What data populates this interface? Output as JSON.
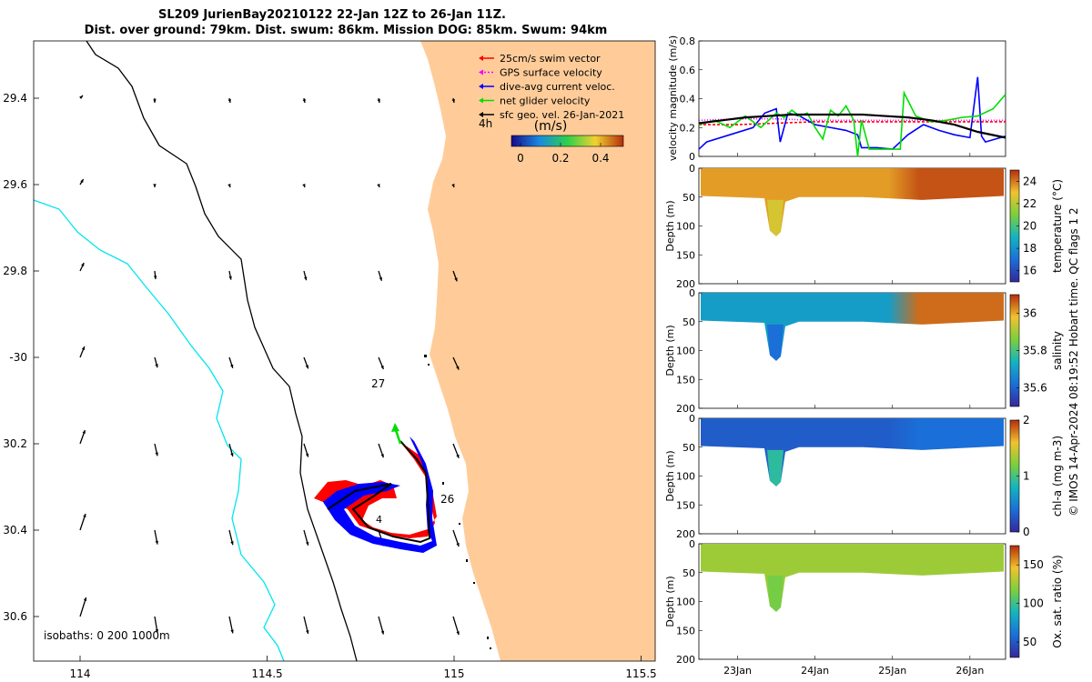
{
  "title": {
    "line1": "SL209 JurienBay20210122 22-Jan 12Z to 26-Jan 11Z.",
    "line2": "Dist. over ground: 79km. Dist. swum: 86km. Mission DOG: 85km. Swum: 94km"
  },
  "credit": "© IMOS 14-Apr-2024 08:19:52 Hobart time. QC flags 1  2",
  "map": {
    "legend": [
      {
        "label": "25cm/s swim vector",
        "color": "#ff0000"
      },
      {
        "label": "GPS surface velocity",
        "color": "#ff00ff"
      },
      {
        "label": "dive-avg current veloc.",
        "color": "#0000ff"
      },
      {
        "label": "net glider velocity",
        "color": "#00dd00"
      },
      {
        "label": "sfc geo. vel. 26-Jan-2021",
        "color": "#000000"
      }
    ],
    "interval_label": "4h",
    "colorbar_title": "(m/s)",
    "colorbar_ticks": [
      "0",
      "0.2",
      "0.4"
    ],
    "isobaths_label": "isobaths: 0   200  1000m",
    "day_labels": [
      "27",
      "26"
    ],
    "lon_ticks": [
      "114",
      "114.5",
      "115",
      "115.5"
    ],
    "lat_ticks": [
      "29.4",
      "29.6",
      "29.8",
      "-30",
      "30.2",
      "30.4",
      "30.6"
    ],
    "land_color": "#ffcc99",
    "isobath_200_color": "#000000",
    "isobath_1000_color": "#00e5ee"
  },
  "chart_data": [
    {
      "type": "line",
      "title": "",
      "ylabel": "velocity magnitude (m/s)",
      "xlabel": "",
      "ylim": [
        0,
        0.8
      ],
      "yticks": [
        "0",
        "0.2",
        "0.4",
        "0.6",
        "0.8"
      ],
      "x_range_days": [
        22.5,
        26.46
      ],
      "series": [
        {
          "name": "swim speed",
          "color": "#ff0000",
          "x": [
            22.5,
            23.0,
            23.5,
            24.0,
            24.5,
            25.0,
            25.5,
            26.0,
            26.46
          ],
          "y": [
            0.22,
            0.22,
            0.23,
            0.24,
            0.24,
            0.24,
            0.24,
            0.24,
            0.24
          ]
        },
        {
          "name": "GPS surface velocity",
          "color": "#ff00ff",
          "x": [
            22.5,
            23.0,
            23.5,
            24.0,
            24.5,
            25.0,
            25.5,
            26.0,
            26.46
          ],
          "y": [
            0.25,
            0.26,
            0.26,
            0.25,
            0.25,
            0.25,
            0.25,
            0.25,
            0.25
          ]
        },
        {
          "name": "dive-avg current",
          "color": "#0000ff",
          "x": [
            22.5,
            22.6,
            22.9,
            23.2,
            23.35,
            23.5,
            23.55,
            23.65,
            23.8,
            24.0,
            24.2,
            24.4,
            24.55,
            24.6,
            24.8,
            25.0,
            25.2,
            25.4,
            25.6,
            25.8,
            26.0,
            26.1,
            26.15,
            26.2,
            26.46
          ],
          "y": [
            0.05,
            0.1,
            0.15,
            0.2,
            0.3,
            0.33,
            0.1,
            0.3,
            0.28,
            0.22,
            0.2,
            0.18,
            0.15,
            0.06,
            0.06,
            0.05,
            0.15,
            0.22,
            0.18,
            0.15,
            0.13,
            0.55,
            0.14,
            0.1,
            0.14
          ]
        },
        {
          "name": "net glider velocity",
          "color": "#00dd00",
          "x": [
            22.5,
            22.7,
            22.9,
            23.1,
            23.3,
            23.5,
            23.6,
            23.7,
            23.8,
            23.9,
            24.0,
            24.1,
            24.2,
            24.3,
            24.4,
            24.5,
            24.55,
            24.6,
            24.7,
            24.8,
            24.9,
            25.0,
            25.1,
            25.15,
            25.3,
            25.5,
            25.7,
            25.9,
            26.1,
            26.3,
            26.46
          ],
          "y": [
            0.22,
            0.25,
            0.2,
            0.28,
            0.2,
            0.3,
            0.27,
            0.32,
            0.28,
            0.3,
            0.2,
            0.12,
            0.32,
            0.28,
            0.35,
            0.25,
            0.0,
            0.25,
            0.05,
            0.05,
            0.05,
            0.05,
            0.05,
            0.44,
            0.28,
            0.24,
            0.25,
            0.27,
            0.28,
            0.33,
            0.43
          ]
        },
        {
          "name": "geostrophic",
          "color": "#000000",
          "x": [
            22.5,
            22.8,
            23.1,
            23.4,
            23.7,
            24.0,
            24.3,
            24.6,
            24.9,
            25.2,
            25.5,
            25.8,
            26.1,
            26.46
          ],
          "y": [
            0.23,
            0.25,
            0.27,
            0.28,
            0.29,
            0.29,
            0.29,
            0.29,
            0.28,
            0.27,
            0.25,
            0.22,
            0.17,
            0.13
          ]
        }
      ]
    },
    {
      "type": "heatmap",
      "ylabel": "Depth (m)",
      "colorbar_label": "temperature (°C)",
      "ylim": [
        200,
        0
      ],
      "yticks": [
        "0",
        "50",
        "100",
        "150",
        "200"
      ],
      "colorbar_ticks": [
        "16",
        "18",
        "20",
        "22",
        "24"
      ],
      "colorbar_range": [
        15,
        25
      ],
      "surface_value": 23.5,
      "deep_value": 22.5,
      "late_value": 24.5
    },
    {
      "type": "heatmap",
      "ylabel": "Depth (m)",
      "colorbar_label": "salinity",
      "ylim": [
        200,
        0
      ],
      "yticks": [
        "0",
        "50",
        "100",
        "150",
        "200"
      ],
      "colorbar_ticks": [
        "35.6",
        "35.8",
        "36"
      ],
      "colorbar_range": [
        35.5,
        36.1
      ],
      "surface_value": 35.7,
      "deep_value": 35.62,
      "late_value": 36.05
    },
    {
      "type": "heatmap",
      "ylabel": "Depth (m)",
      "colorbar_label": "chl-a (mg m-3)",
      "ylim": [
        200,
        0
      ],
      "yticks": [
        "0",
        "50",
        "100",
        "150",
        "200"
      ],
      "colorbar_ticks": [
        "0",
        "1",
        "2"
      ],
      "colorbar_range": [
        0,
        2
      ],
      "surface_value": 0.3,
      "deep_value": 0.9,
      "late_value": 0.4
    },
    {
      "type": "heatmap",
      "ylabel": "Depth (m)",
      "colorbar_label": "Ox. sat. ratio (%)",
      "ylim": [
        200,
        0
      ],
      "yticks": [
        "0",
        "50",
        "100",
        "150",
        "200"
      ],
      "colorbar_ticks": [
        "50",
        "100",
        "150"
      ],
      "colorbar_range": [
        30,
        175
      ],
      "surface_value": 125,
      "deep_value": 115,
      "late_value": 125
    }
  ],
  "time_ticks": [
    "23Jan",
    "24Jan",
    "25Jan",
    "26Jan"
  ]
}
